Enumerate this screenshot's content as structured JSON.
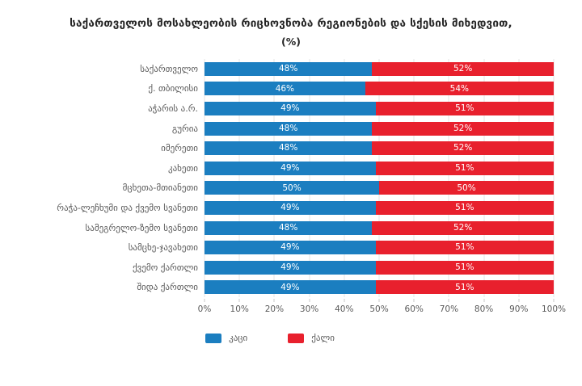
{
  "page": {
    "background_color": "#ffffff"
  },
  "chart_data": {
    "type": "bar",
    "orientation": "horizontal",
    "stacked": true,
    "title": "საქართველოს მოსახლეობის რიცხოვნობა რეგიონების და სქესის მიხედვით,",
    "subtitle": "(%)",
    "categories": [
      "საქართველო",
      "ქ. თბილისი",
      "აჭარის ა.რ.",
      "გურია",
      "იმერეთი",
      "კახეთი",
      "მცხეთა-მთიანეთი",
      "რაჭა-ლეჩხუმი და ქვემო სვანეთი",
      "სამეგრელო-ზემო სვანეთი",
      "სამცხე-ჯავახეთი",
      "ქვემო ქართლი",
      "შიდა ქართლი"
    ],
    "series": [
      {
        "name": "კაცი",
        "key": "male",
        "color": "#1b7ec0",
        "values": [
          48,
          46,
          49,
          48,
          48,
          49,
          50,
          49,
          48,
          49,
          49,
          49
        ]
      },
      {
        "name": "ქალი",
        "key": "female",
        "color": "#e8202d",
        "values": [
          52,
          54,
          51,
          52,
          52,
          51,
          50,
          51,
          52,
          51,
          51,
          51
        ]
      }
    ],
    "value_suffix": "%",
    "x_ticks": [
      "0%",
      "10%",
      "20%",
      "30%",
      "40%",
      "50%",
      "60%",
      "70%",
      "80%",
      "90%",
      "100%"
    ],
    "xlim": [
      0,
      100
    ],
    "grid": true,
    "gridline_color": "#e4e4e4",
    "legend_position": "bottom",
    "text_color": "#595959",
    "title_color": "#262626",
    "bar_label_color": "#ffffff"
  }
}
